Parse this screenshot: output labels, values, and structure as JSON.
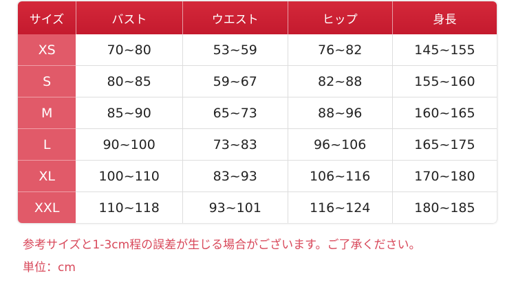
{
  "table": {
    "headers": [
      "サイズ",
      "バスト",
      "ウエスト",
      "ヒップ",
      "身長"
    ],
    "rows": [
      [
        "XS",
        "70~80",
        "53~59",
        "76~82",
        "145~155"
      ],
      [
        "S",
        "80~85",
        "59~67",
        "82~88",
        "155~160"
      ],
      [
        "M",
        "85~90",
        "65~73",
        "88~96",
        "160~165"
      ],
      [
        "L",
        "90~100",
        "73~83",
        "96~106",
        "165~175"
      ],
      [
        "XL",
        "100~110",
        "83~93",
        "106~116",
        "170~180"
      ],
      [
        "XXL",
        "110~118",
        "93~101",
        "116~124",
        "180~185"
      ]
    ]
  },
  "note": "参考サイズと1-3cm程の誤差が生じる場合がございます。ご了承ください。",
  "unit": "単位：cm",
  "colors": {
    "header": "#c8102e",
    "size_column": "#e15a69",
    "note_text": "#d8485a"
  }
}
